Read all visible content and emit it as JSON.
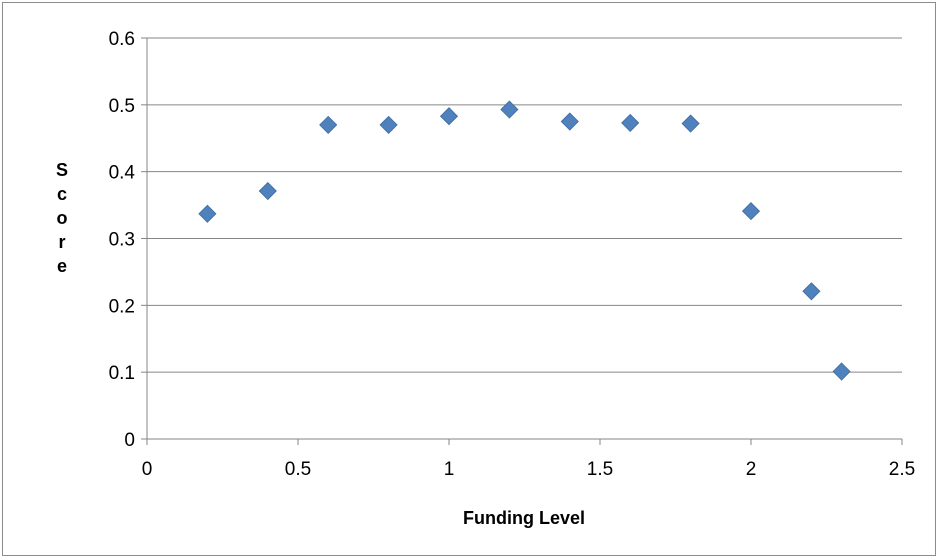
{
  "chart_data": {
    "type": "scatter",
    "title": "",
    "xlabel": "Funding Level",
    "ylabel": "Score",
    "xlim": [
      0,
      2.5
    ],
    "ylim": [
      0,
      0.6
    ],
    "x_ticks": [
      "0",
      "0.5",
      "1",
      "1.5",
      "2",
      "2.5"
    ],
    "y_ticks": [
      "0",
      "0.1",
      "0.2",
      "0.3",
      "0.4",
      "0.5",
      "0.6"
    ],
    "grid": "horizontal",
    "legend": "none",
    "marker": "diamond",
    "marker_color": "#4f81bd",
    "series": [
      {
        "x": [
          0.2,
          0.4,
          0.6,
          0.8,
          1.0,
          1.2,
          1.4,
          1.6,
          1.8,
          2.0,
          2.2,
          2.3
        ],
        "y": [
          0.337,
          0.371,
          0.47,
          0.47,
          0.483,
          0.493,
          0.475,
          0.473,
          0.472,
          0.341,
          0.221,
          0.101
        ]
      }
    ]
  }
}
